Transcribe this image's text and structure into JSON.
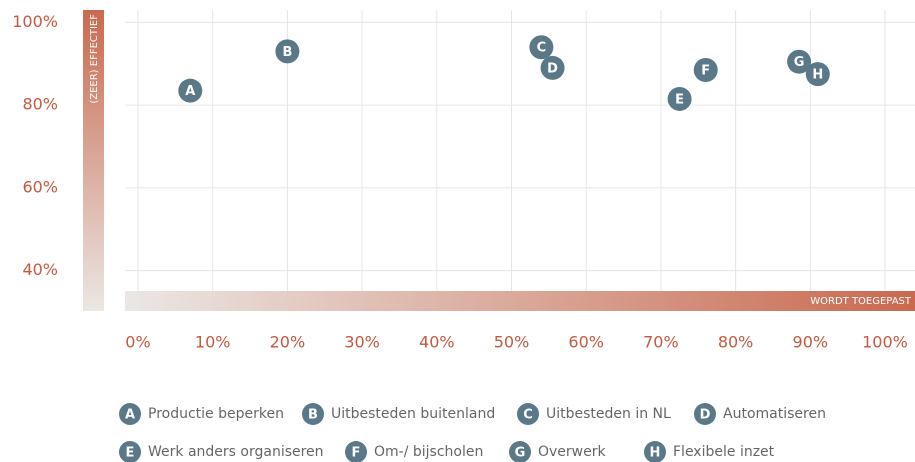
{
  "chart_data": {
    "type": "scatter",
    "ylabel": "(ZEER) EFFECTIEF",
    "xlabel": "WORDT TOEGEPAST",
    "markers": [
      "A",
      "B",
      "C",
      "D",
      "E",
      "F",
      "G",
      "H"
    ],
    "names": [
      "Productie beperken",
      "Uitbesteden buitenland",
      "Uitbesteden in NL",
      "Automatiseren",
      "Werk anders organiseren",
      "Om-/ bijscholen",
      "Overwerk",
      "Flexibele inzet"
    ],
    "x": [
      7,
      20,
      54,
      55.5,
      72.5,
      76,
      88.5,
      91
    ],
    "values": [
      83.5,
      93,
      94,
      89,
      81.5,
      88.5,
      90.5,
      87.5
    ],
    "color": "#5b7888",
    "axis_color": "#c45a40",
    "xlim": [
      0,
      100
    ],
    "ylim": [
      30,
      103
    ],
    "xticks": [
      {
        "value": 0,
        "label": "0%"
      },
      {
        "value": 10,
        "label": "10%"
      },
      {
        "value": 20,
        "label": "20%"
      },
      {
        "value": 30,
        "label": "30%"
      },
      {
        "value": 40,
        "label": "40%"
      },
      {
        "value": 50,
        "label": "50%"
      },
      {
        "value": 60,
        "label": "60%"
      },
      {
        "value": 70,
        "label": "70%"
      },
      {
        "value": 80,
        "label": "80%"
      },
      {
        "value": 90,
        "label": "90%"
      },
      {
        "value": 100,
        "label": "100%"
      }
    ],
    "yticks": [
      {
        "value": 40,
        "label": "40%"
      },
      {
        "value": 60,
        "label": "60%"
      },
      {
        "value": 80,
        "label": "80%"
      },
      {
        "value": 100,
        "label": "100%"
      }
    ],
    "grid": true
  }
}
